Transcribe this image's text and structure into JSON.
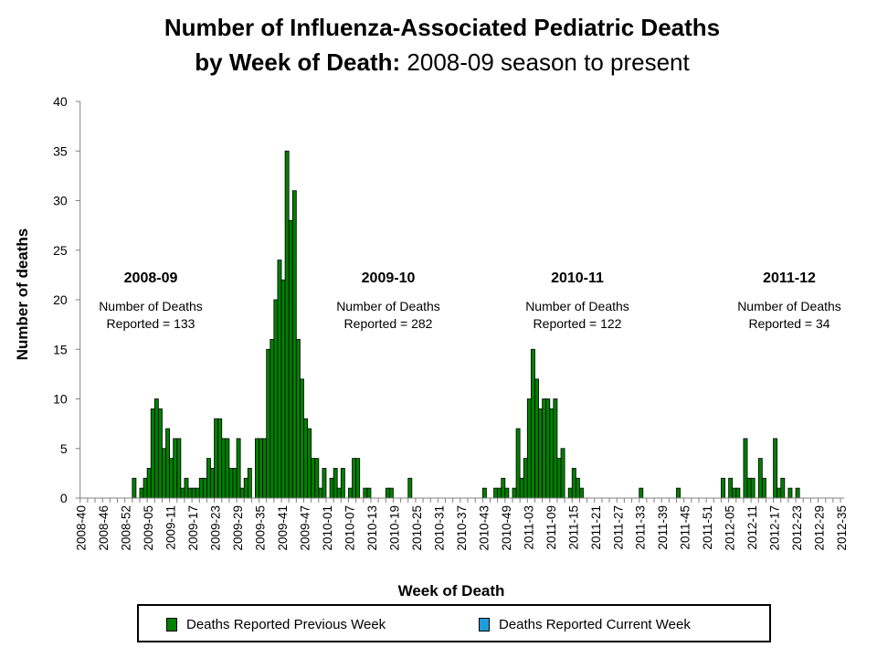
{
  "chart_data": {
    "type": "bar",
    "title_bold": "Number of Influenza-Associated Pediatric Deaths",
    "title_line2_bold": "by Week of Death:",
    "title_line2_regular": " 2008-09 season to present",
    "xlabel": "Week of Death",
    "ylabel": "Number of deaths",
    "ylim": [
      0,
      40
    ],
    "yticks": [
      0,
      5,
      10,
      15,
      20,
      25,
      30,
      35,
      40
    ],
    "xtick_labels": [
      "2008-40",
      "2008-46",
      "2008-52",
      "2009-05",
      "2009-11",
      "2009-17",
      "2009-23",
      "2009-29",
      "2009-35",
      "2009-41",
      "2009-47",
      "2010-01",
      "2010-07",
      "2010-13",
      "2010-19",
      "2010-25",
      "2010-31",
      "2010-37",
      "2010-43",
      "2010-49",
      "2011-03",
      "2011-09",
      "2011-15",
      "2011-21",
      "2011-27",
      "2011-33",
      "2011-39",
      "2011-45",
      "2011-51",
      "2012-05",
      "2012-11",
      "2012-17",
      "2012-23",
      "2012-29",
      "2012-35"
    ],
    "grid": false,
    "legend_placement": "bottom",
    "series": [
      {
        "name": "Deaths Reported Previous Week",
        "color": "#008000",
        "values": [
          0,
          0,
          0,
          0,
          0,
          0,
          0,
          0,
          0,
          0,
          0,
          0,
          0,
          0,
          2,
          0,
          1,
          2,
          3,
          9,
          10,
          9,
          5,
          7,
          4,
          6,
          6,
          1,
          2,
          1,
          1,
          1,
          2,
          2,
          4,
          3,
          8,
          8,
          6,
          6,
          3,
          3,
          6,
          1,
          2,
          3,
          0,
          6,
          6,
          6,
          15,
          16,
          20,
          24,
          22,
          35,
          28,
          31,
          16,
          12,
          8,
          7,
          4,
          4,
          1,
          3,
          0,
          2,
          3,
          1,
          3,
          0,
          1,
          4,
          4,
          0,
          1,
          1,
          0,
          0,
          0,
          0,
          1,
          1,
          0,
          0,
          0,
          0,
          2,
          0,
          0,
          0,
          0,
          0,
          0,
          0,
          0,
          0,
          0,
          0,
          0,
          0,
          0,
          0,
          0,
          0,
          0,
          0,
          1,
          0,
          0,
          1,
          1,
          2,
          1,
          0,
          1,
          7,
          2,
          4,
          10,
          15,
          12,
          9,
          10,
          10,
          9,
          10,
          4,
          5,
          0,
          1,
          3,
          2,
          1,
          0,
          0,
          0,
          0,
          0,
          0,
          0,
          0,
          0,
          0,
          0,
          0,
          0,
          0,
          0,
          1,
          0,
          0,
          0,
          0,
          0,
          0,
          0,
          0,
          0,
          1,
          0,
          0,
          0,
          0,
          0,
          0,
          0,
          0,
          0,
          0,
          0,
          2,
          0,
          2,
          1,
          1,
          0,
          6,
          2,
          2,
          0,
          4,
          2,
          0,
          0,
          6,
          1,
          2,
          0,
          1,
          0,
          1,
          0,
          0,
          0,
          0,
          0,
          0,
          0,
          0,
          0,
          0,
          0,
          0
        ]
      },
      {
        "name": "Deaths Reported Current Week",
        "color": "#1E9BDC",
        "values": []
      }
    ],
    "annotations": [
      {
        "season": "2008-09",
        "line1": "Number of Deaths",
        "line2": "Reported = 133"
      },
      {
        "season": "2009-10",
        "line1": "Number of Deaths",
        "line2": "Reported = 282"
      },
      {
        "season": "2010-11",
        "line1": "Number of Deaths",
        "line2": "Reported = 122"
      },
      {
        "season": "2011-12",
        "line1": "Number of Deaths",
        "line2": "Reported = 34"
      }
    ]
  }
}
